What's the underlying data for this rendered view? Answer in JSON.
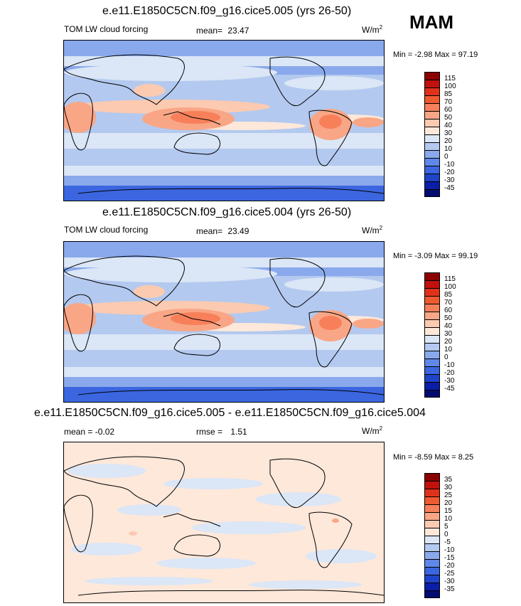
{
  "header": {
    "season": "MAM"
  },
  "panels": [
    {
      "title": "e.e11.E1850C5CN.f09_g16.cice5.005 (yrs 26-50)",
      "left_label": "TOM LW cloud forcing",
      "mean_label": "mean=",
      "mean_value": "23.47",
      "units_base": "W/m",
      "units_sup": "2",
      "minmax": "Min =  -2.98 Max =  97.19"
    },
    {
      "title": "e.e11.E1850C5CN.f09_g16.cice5.004 (yrs 26-50)",
      "left_label": "TOM LW cloud forcing",
      "mean_label": "mean=",
      "mean_value": "23.49",
      "units_base": "W/m",
      "units_sup": "2",
      "minmax": "Min =  -3.09 Max =  99.19"
    },
    {
      "title": "e.e11.E1850C5CN.f09_g16.cice5.005 - e.e11.E1850C5CN.f09_g16.cice5.004",
      "left_label": "mean =  -0.02",
      "mean_label": "rmse =",
      "mean_value": "1.51",
      "units_base": "W/m",
      "units_sup": "2",
      "minmax": "Min =  -8.59 Max =   8.25"
    }
  ],
  "chart_data": [
    {
      "type": "heatmap",
      "title": "e.e11.E1850C5CN.f09_g16.cice5.005 (yrs 26-50)",
      "variable": "TOM LW cloud forcing",
      "units": "W/m2",
      "mean": 23.47,
      "min": -2.98,
      "max": 97.19,
      "colorbar_levels": [
        "115",
        "100",
        "85",
        "70",
        "60",
        "50",
        "40",
        "30",
        "20",
        "10",
        "0",
        "-10",
        "-20",
        "-30",
        "-45"
      ],
      "colorbar_colors": [
        "#8b0000",
        "#c0110e",
        "#e0321a",
        "#ef5a30",
        "#f7805a",
        "#f9a686",
        "#fbcab0",
        "#fde8da",
        "#dbe6f6",
        "#b3c9ef",
        "#8aa9ec",
        "#5f88ea",
        "#3b66e0",
        "#1f44c8",
        "#0b1ea8",
        "#020c70"
      ]
    },
    {
      "type": "heatmap",
      "title": "e.e11.E1850C5CN.f09_g16.cice5.004 (yrs 26-50)",
      "variable": "TOM LW cloud forcing",
      "units": "W/m2",
      "mean": 23.49,
      "min": -3.09,
      "max": 99.19,
      "colorbar_levels": [
        "115",
        "100",
        "85",
        "70",
        "60",
        "50",
        "40",
        "30",
        "20",
        "10",
        "0",
        "-10",
        "-20",
        "-30",
        "-45"
      ],
      "colorbar_colors": [
        "#8b0000",
        "#c0110e",
        "#e0321a",
        "#ef5a30",
        "#f7805a",
        "#f9a686",
        "#fbcab0",
        "#fde8da",
        "#dbe6f6",
        "#b3c9ef",
        "#8aa9ec",
        "#5f88ea",
        "#3b66e0",
        "#1f44c8",
        "#0b1ea8",
        "#020c70"
      ]
    },
    {
      "type": "heatmap",
      "title": "e.e11.E1850C5CN.f09_g16.cice5.005 - e.e11.E1850C5CN.f09_g16.cice5.004",
      "units": "W/m2",
      "mean": -0.02,
      "rmse": 1.51,
      "min": -8.59,
      "max": 8.25,
      "colorbar_levels": [
        "35",
        "30",
        "25",
        "20",
        "15",
        "10",
        "5",
        "0",
        "-5",
        "-10",
        "-15",
        "-20",
        "-25",
        "-30",
        "-35"
      ],
      "colorbar_colors": [
        "#8b0000",
        "#c0110e",
        "#e0321a",
        "#ef5a30",
        "#f7805a",
        "#f9a686",
        "#fbcab0",
        "#fde8da",
        "#dbe6f6",
        "#b3c9ef",
        "#8aa9ec",
        "#5f88ea",
        "#3b66e0",
        "#1f44c8",
        "#0b1ea8",
        "#020c70"
      ]
    }
  ]
}
